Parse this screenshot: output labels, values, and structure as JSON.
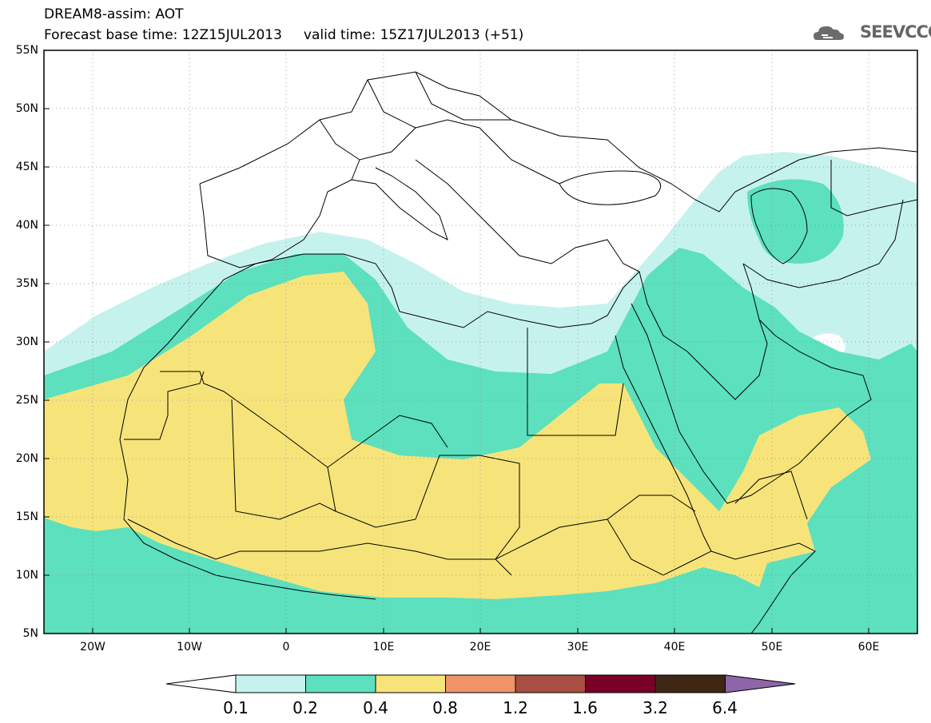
{
  "header": {
    "title_line1": "DREAM8-assim: AOT",
    "title_line2": "Forecast base time: 12Z15JUL2013     valid time: 15Z17JUL2013 (+51)"
  },
  "logo": {
    "text": "SEEVCCC",
    "icon": "cloud-icon",
    "color": "#6b6b6b"
  },
  "map": {
    "lon_range": [
      -25,
      65
    ],
    "lat_range": [
      5,
      55
    ],
    "lat_labels": [
      "55N",
      "50N",
      "45N",
      "40N",
      "35N",
      "30N",
      "25N",
      "20N",
      "15N",
      "10N",
      "5N"
    ],
    "lon_labels": [
      "20W",
      "10W",
      "0",
      "10E",
      "20E",
      "30E",
      "40E",
      "50E",
      "60E"
    ],
    "field": "AOT"
  },
  "colorbar": {
    "levels": [
      "0.1",
      "0.2",
      "0.4",
      "0.8",
      "1.2",
      "1.6",
      "3.2",
      "6.4"
    ],
    "colors": [
      "#ffffff",
      "#c6f2ee",
      "#5ce0be",
      "#f6e47a",
      "#ee9468",
      "#a84e42",
      "#7a0027",
      "#3f2716",
      "#8e66a8"
    ]
  }
}
